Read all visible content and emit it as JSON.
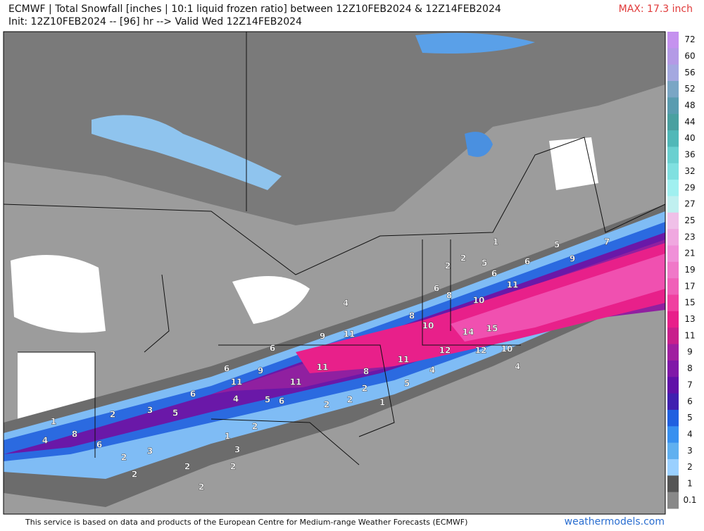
{
  "header": {
    "title": "ECMWF | Total Snowfall [inches | 10:1 liquid frozen ratio] between 12Z10FEB2024 & 12Z14FEB2024",
    "subtitle": "Init: 12Z10FEB2024 -- [96] hr --> Valid Wed 12Z14FEB2024",
    "max_label": "MAX: 17.3 inch"
  },
  "colorbar": {
    "labels": [
      "72",
      "60",
      "56",
      "52",
      "48",
      "44",
      "40",
      "36",
      "32",
      "29",
      "27",
      "25",
      "23",
      "21",
      "19",
      "17",
      "15",
      "13",
      "11",
      "9",
      "8",
      "7",
      "6",
      "5",
      "4",
      "3",
      "2",
      "1",
      "0.1"
    ],
    "colors": [
      "#c592ef",
      "#b49ae6",
      "#a4a8e0",
      "#7aa6c5",
      "#5a9cb0",
      "#4aa0a0",
      "#50b8b8",
      "#6ad0d0",
      "#80e0e0",
      "#a0f0f0",
      "#c0f0f0",
      "#f0c0e8",
      "#f0a8e0",
      "#f090d8",
      "#f078c8",
      "#f060b8",
      "#f040a0",
      "#e8208a",
      "#c8208c",
      "#a020a0",
      "#8018a8",
      "#6010a8",
      "#4020b0",
      "#2060e0",
      "#3890f0",
      "#60b0f0",
      "#9ad0ff",
      "#555555",
      "#888888"
    ]
  },
  "map_labels": [
    "1",
    "5",
    "7",
    "2",
    "2",
    "5",
    "6",
    "9",
    "6",
    "11",
    "6",
    "8",
    "10",
    "4",
    "8",
    "10",
    "14",
    "15",
    "9",
    "11",
    "6",
    "12",
    "12",
    "10",
    "11",
    "6",
    "9",
    "11",
    "8",
    "4",
    "11",
    "11",
    "2",
    "5",
    "6",
    "4",
    "5",
    "6",
    "2",
    "2",
    "1",
    "3",
    "5",
    "2",
    "2",
    "1",
    "8",
    "4",
    "6",
    "1",
    "3",
    "3",
    "2",
    "2",
    "2",
    "2",
    "2",
    "4"
  ],
  "footer": {
    "credit": "This service is based on data and products of the European Centre for Medium-range Weather Forecasts (ECMWF)",
    "site": "weathermodels.com"
  }
}
